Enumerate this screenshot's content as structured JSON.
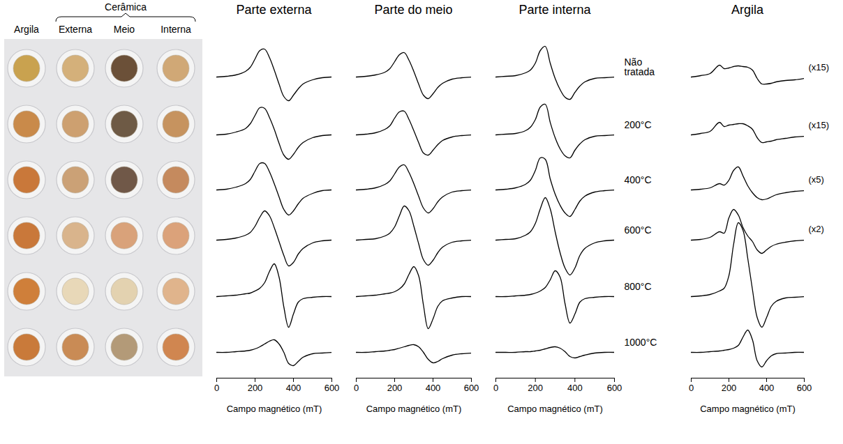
{
  "photo": {
    "group_label": "Cerâmica",
    "columns": [
      "Argila",
      "Externa",
      "Meio",
      "Interna"
    ],
    "colors": [
      [
        "#c9a24f",
        "#d4b07a",
        "#6b5038",
        "#d0a876"
      ],
      [
        "#c98a4a",
        "#cda070",
        "#6e5a45",
        "#c6935f"
      ],
      [
        "#c9783a",
        "#cba176",
        "#705848",
        "#c58a5e"
      ],
      [
        "#c9783a",
        "#d9b48c",
        "#d9a27a",
        "#dba27a"
      ],
      [
        "#cf7f3a",
        "#e8d8b8",
        "#e3d2b0",
        "#e0b48c"
      ],
      [
        "#c97a3a",
        "#c98b55",
        "#b39a78",
        "#d08650"
      ]
    ]
  },
  "chart_data": [
    {
      "type": "line",
      "title": "Parte externa",
      "x_label": "Campo magnético (mT)",
      "tick_labels": "x",
      "xlim": [
        0,
        600
      ],
      "xticks": [
        0,
        200,
        400,
        600
      ],
      "ylim": [
        0,
        490
      ],
      "x": [
        0,
        50,
        100,
        150,
        175,
        200,
        225,
        250,
        275,
        300,
        325,
        350,
        375,
        400,
        425,
        450,
        500,
        550,
        600
      ],
      "series": [
        {
          "name": "Não tratada",
          "color": "#000000",
          "values": [
            432,
            433,
            435,
            440,
            446,
            458,
            470,
            472,
            460,
            442,
            422,
            404,
            398,
            406,
            415,
            422,
            428,
            431,
            432
          ]
        },
        {
          "name": "200°C",
          "color": "#000000",
          "values": [
            349,
            350,
            353,
            358,
            365,
            377,
            388,
            387,
            374,
            357,
            337,
            320,
            314,
            321,
            331,
            338,
            345,
            348,
            349
          ]
        },
        {
          "name": "400°C",
          "color": "#000000",
          "values": [
            270,
            271,
            274,
            279,
            285,
            297,
            308,
            308,
            296,
            279,
            260,
            242,
            234,
            240,
            250,
            258,
            265,
            269,
            270
          ]
        },
        {
          "name": "600°C",
          "color": "#000000",
          "values": [
            198,
            199,
            201,
            205,
            209,
            218,
            231,
            240,
            233,
            216,
            196,
            176,
            161,
            166,
            178,
            186,
            194,
            197,
            198
          ]
        },
        {
          "name": "800°C",
          "color": "#000000",
          "values": [
            117,
            118,
            119,
            121,
            122,
            125,
            129,
            137,
            153,
            164,
            145,
            102,
            73,
            92,
            109,
            114,
            116,
            117,
            117
          ]
        },
        {
          "name": "1000°C",
          "color": "#000000",
          "values": [
            37,
            37,
            38,
            39,
            40,
            42,
            45,
            49,
            53,
            55,
            49,
            37,
            21,
            18,
            24,
            30,
            35,
            36,
            37
          ]
        }
      ]
    },
    {
      "type": "line",
      "title": "Parte do meio",
      "x_label": "Campo magnético (mT)",
      "tick_labels": "x",
      "xlim": [
        0,
        600
      ],
      "xticks": [
        0,
        200,
        400,
        600
      ],
      "ylim": [
        0,
        490
      ],
      "x": [
        0,
        50,
        100,
        150,
        175,
        200,
        225,
        250,
        275,
        300,
        325,
        350,
        375,
        400,
        425,
        450,
        500,
        550,
        600
      ],
      "series": [
        {
          "name": "Não tratada",
          "color": "#000000",
          "values": [
            432,
            433,
            435,
            439,
            444,
            454,
            464,
            467,
            456,
            440,
            422,
            406,
            401,
            408,
            417,
            423,
            429,
            431,
            432
          ]
        },
        {
          "name": "200°C",
          "color": "#000000",
          "values": [
            349,
            350,
            352,
            357,
            362,
            373,
            382,
            383,
            371,
            355,
            338,
            323,
            320,
            327,
            335,
            341,
            346,
            348,
            349
          ]
        },
        {
          "name": "400°C",
          "color": "#000000",
          "values": [
            270,
            271,
            273,
            278,
            283,
            293,
            303,
            306,
            295,
            279,
            261,
            244,
            237,
            243,
            253,
            260,
            267,
            269,
            270
          ]
        },
        {
          "name": "600°C",
          "color": "#000000",
          "values": [
            198,
            199,
            200,
            204,
            208,
            217,
            233,
            247,
            240,
            218,
            193,
            170,
            162,
            169,
            180,
            188,
            195,
            197,
            198
          ]
        },
        {
          "name": "800°C",
          "color": "#000000",
          "values": [
            117,
            118,
            119,
            121,
            122,
            124,
            128,
            135,
            149,
            160,
            147,
            105,
            71,
            85,
            103,
            111,
            115,
            117,
            117
          ]
        },
        {
          "name": "1000°C",
          "color": "#000000",
          "values": [
            37,
            37,
            38,
            39,
            40,
            41,
            43,
            45,
            47,
            48,
            45,
            37,
            27,
            22,
            24,
            28,
            33,
            35,
            36
          ]
        }
      ]
    },
    {
      "type": "line",
      "title": "Parte interna",
      "x_label": "Campo magnético (mT)",
      "tick_labels": "x",
      "xlim": [
        0,
        600
      ],
      "xticks": [
        0,
        200,
        400,
        600
      ],
      "ylim": [
        0,
        490
      ],
      "x": [
        0,
        50,
        100,
        150,
        175,
        200,
        225,
        250,
        275,
        300,
        325,
        350,
        375,
        400,
        425,
        450,
        500,
        550,
        600
      ],
      "series": [
        {
          "name": "Não tratada",
          "color": "#000000",
          "values": [
            432,
            433,
            434,
            438,
            442,
            452,
            470,
            476,
            452,
            430,
            414,
            403,
            400,
            410,
            419,
            425,
            430,
            431,
            432
          ]
        },
        {
          "name": "200°C",
          "color": "#000000",
          "values": [
            349,
            350,
            351,
            355,
            360,
            371,
            389,
            393,
            367,
            345,
            329,
            319,
            316,
            327,
            336,
            342,
            347,
            348,
            349
          ]
        },
        {
          "name": "400°C",
          "color": "#000000",
          "values": [
            270,
            271,
            273,
            278,
            284,
            298,
            316,
            314,
            286,
            264,
            248,
            237,
            232,
            242,
            254,
            261,
            267,
            269,
            270
          ]
        },
        {
          "name": "600°C",
          "color": "#000000",
          "values": [
            198,
            199,
            200,
            205,
            210,
            222,
            243,
            259,
            243,
            210,
            180,
            158,
            148,
            158,
            176,
            186,
            194,
            197,
            198
          ]
        },
        {
          "name": "800°C",
          "color": "#000000",
          "values": [
            117,
            117,
            118,
            119,
            120,
            122,
            125,
            130,
            141,
            154,
            145,
            107,
            79,
            92,
            109,
            114,
            116,
            117,
            117
          ]
        },
        {
          "name": "1000°C",
          "color": "#000000",
          "values": [
            37,
            37,
            37,
            38,
            38,
            39,
            40,
            42,
            44,
            45,
            43,
            38,
            31,
            29,
            31,
            33,
            36,
            37,
            37
          ]
        }
      ]
    },
    {
      "type": "line",
      "title": "Argila",
      "x_label": "Campo magnético (mT)",
      "tick_labels": "x",
      "xlim": [
        0,
        600
      ],
      "xticks": [
        0,
        200,
        400,
        600
      ],
      "ylim": [
        0,
        490
      ],
      "x": [
        0,
        50,
        100,
        150,
        175,
        200,
        225,
        250,
        275,
        300,
        325,
        350,
        375,
        400,
        425,
        450,
        500,
        550,
        600
      ],
      "series": [
        {
          "name": "Não tratada",
          "color": "#000000",
          "annotation": "(x15)",
          "values": [
            432,
            434,
            437,
            449,
            444,
            445,
            447,
            448,
            447,
            446,
            442,
            430,
            422,
            422,
            423,
            425,
            427,
            428,
            430
          ]
        },
        {
          "name": "200°C",
          "color": "#000000",
          "annotation": "(x15)",
          "values": [
            349,
            351,
            354,
            367,
            361,
            363,
            364,
            365,
            365,
            362,
            357,
            345,
            338,
            339,
            340,
            342,
            344,
            346,
            347
          ]
        },
        {
          "name": "400°C",
          "color": "#000000",
          "annotation": "(x5)",
          "values": [
            270,
            271,
            273,
            279,
            277,
            284,
            298,
            303,
            290,
            276,
            266,
            259,
            256,
            257,
            260,
            263,
            266,
            268,
            269
          ]
        },
        {
          "name": "600°C",
          "color": "#000000",
          "annotation": "(x2)",
          "values": [
            198,
            199,
            202,
            210,
            208,
            230,
            242,
            234,
            216,
            204,
            196,
            184,
            179,
            184,
            189,
            192,
            195,
            197,
            198
          ]
        },
        {
          "name": "800°C",
          "color": "#000000",
          "values": [
            117,
            118,
            120,
            125,
            129,
            147,
            192,
            223,
            212,
            172,
            127,
            87,
            73,
            87,
            103,
            110,
            115,
            116,
            117
          ]
        },
        {
          "name": "1000°C",
          "color": "#000000",
          "values": [
            37,
            37,
            38,
            39,
            40,
            41,
            43,
            47,
            59,
            69,
            55,
            25,
            16,
            25,
            32,
            35,
            36,
            37,
            37
          ]
        }
      ]
    }
  ]
}
